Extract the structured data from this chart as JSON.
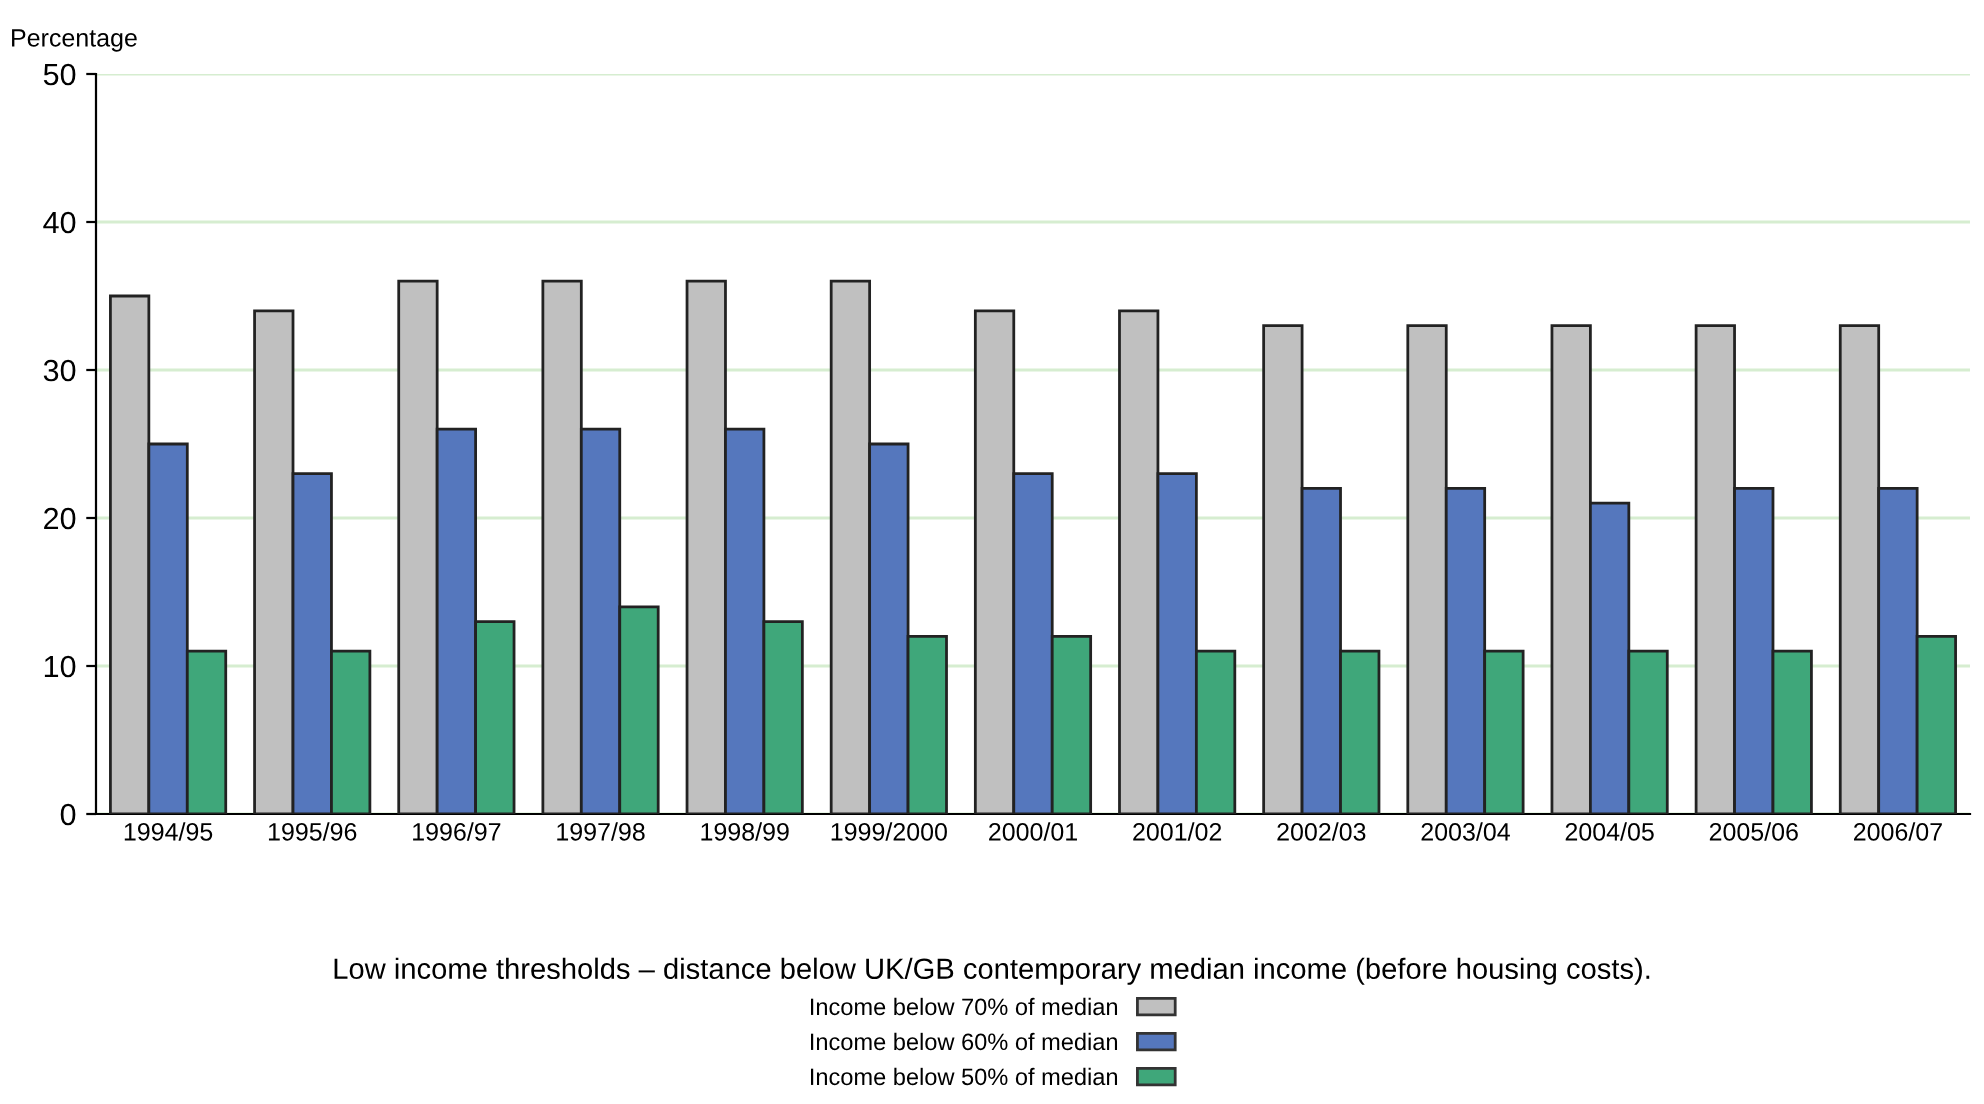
{
  "chart_data": {
    "type": "bar",
    "ylabel": "Percentage",
    "legend_title": "Low income thresholds – distance below UK/GB contemporary median income (before housing costs).",
    "categories": [
      "1994/95",
      "1995/96",
      "1996/97",
      "1997/98",
      "1998/99",
      "1999/2000",
      "2000/01",
      "2001/02",
      "2002/03",
      "2003/04",
      "2004/05",
      "2005/06",
      "2006/07"
    ],
    "series": [
      {
        "name": "Income below 70% of median",
        "color": "#c0c0c0",
        "values": [
          35,
          34,
          36,
          36,
          36,
          36,
          34,
          34,
          33,
          33,
          33,
          33,
          33
        ]
      },
      {
        "name": "Income below 60% of median",
        "color": "#5577bd",
        "values": [
          25,
          23,
          26,
          26,
          26,
          25,
          23,
          23,
          22,
          22,
          21,
          22,
          22
        ]
      },
      {
        "name": "Income below 50% of median",
        "color": "#3fa77a",
        "values": [
          11,
          11,
          13,
          14,
          13,
          12,
          12,
          11,
          11,
          11,
          11,
          11,
          12
        ]
      }
    ],
    "ylim": [
      0,
      50
    ],
    "yticks": [
      0,
      10,
      20,
      30,
      40,
      50
    ],
    "grid": "y",
    "legend": "bottom"
  }
}
